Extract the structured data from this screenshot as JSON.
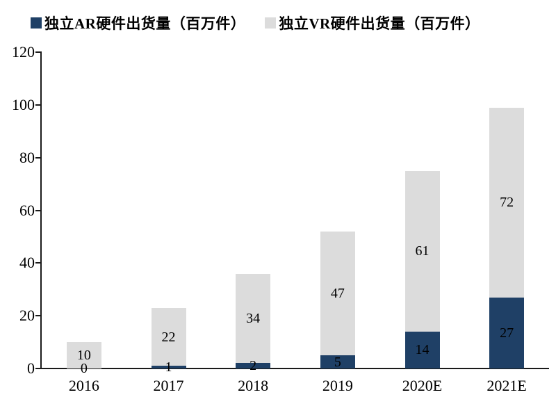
{
  "colors": {
    "ar_series": "#1f4066",
    "vr_series": "#dcdcdc",
    "axis": "#1a1a1a",
    "label_text": "#000000",
    "background": "#ffffff"
  },
  "legend": {
    "items": [
      {
        "label": "独立AR硬件出货量（百万件）",
        "color": "#1f4066"
      },
      {
        "label": "独立VR硬件出货量（百万件）",
        "color": "#dcdcdc"
      }
    ]
  },
  "chart_data": {
    "type": "bar",
    "stacked": true,
    "title": "",
    "xlabel": "",
    "ylabel": "",
    "categories": [
      "2016",
      "2017",
      "2018",
      "2019",
      "2020E",
      "2021E"
    ],
    "series": [
      {
        "name": "独立AR硬件出货量（百万件）",
        "color": "#1f4066",
        "values": [
          0,
          1,
          2,
          5,
          14,
          27
        ]
      },
      {
        "name": "独立VR硬件出货量（百万件）",
        "color": "#dcdcdc",
        "values": [
          10,
          22,
          34,
          47,
          61,
          72
        ]
      }
    ],
    "stack_totals": [
      10,
      23,
      36,
      52,
      75,
      99
    ],
    "ylim": [
      0,
      120
    ],
    "y_ticks": [
      0,
      20,
      40,
      60,
      80,
      100,
      120
    ],
    "grid": false,
    "legend_position": "top",
    "data_labels": true
  }
}
